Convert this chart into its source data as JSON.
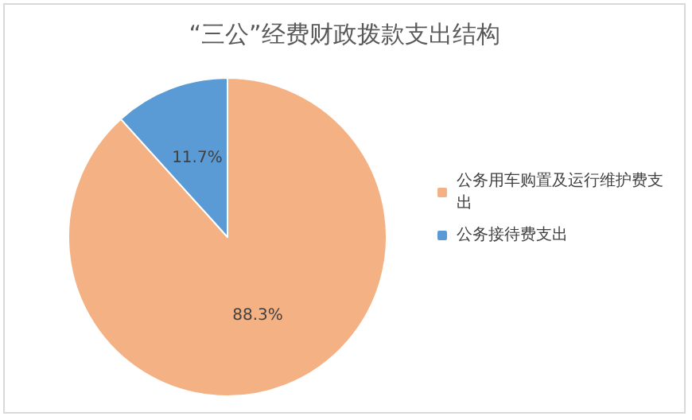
{
  "chart_data": {
    "type": "pie",
    "title": "“三公”经费财政拨款支出结构",
    "categories": [
      "公务用车购置及运行维护费支出",
      "公务接待费支出"
    ],
    "values": [
      88.3,
      11.7
    ],
    "value_labels": [
      "88.3%",
      "11.7%"
    ],
    "colors": [
      "#f4b183",
      "#5b9bd5"
    ],
    "legend": "right"
  }
}
